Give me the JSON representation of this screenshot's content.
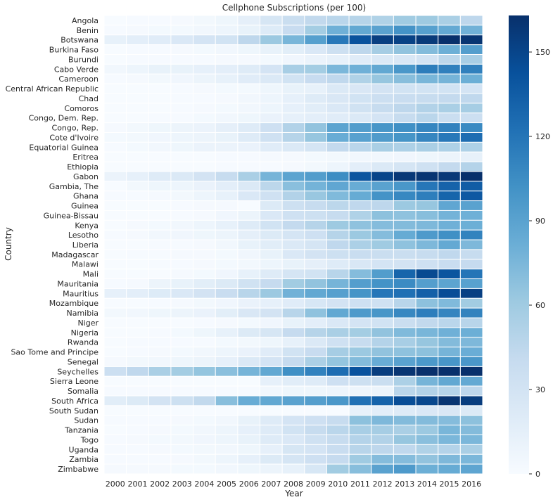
{
  "chart_data": {
    "type": "heatmap",
    "title": "Cellphone Subscriptions (per 100)",
    "xlabel": "Year",
    "ylabel": "Country",
    "colormap": "Blues",
    "low_color": "#f7fbff",
    "high_color": "#08306b",
    "value_range": [
      0,
      163
    ],
    "colorbar_ticks": [
      0,
      30,
      60,
      90,
      120,
      150
    ],
    "x": [
      "2000",
      "2001",
      "2002",
      "2003",
      "2004",
      "2005",
      "2006",
      "2007",
      "2008",
      "2009",
      "2010",
      "2011",
      "2012",
      "2013",
      "2014",
      "2015",
      "2016"
    ],
    "y": [
      "Angola",
      "Benin",
      "Botswana",
      "Burkina Faso",
      "Burundi",
      "Cabo Verde",
      "Cameroon",
      "Central African Republic",
      "Chad",
      "Comoros",
      "Congo, Dem. Rep.",
      "Congo, Rep.",
      "Cote d'Ivoire",
      "Equatorial Guinea",
      "Eritrea",
      "Ethiopia",
      "Gabon",
      "Gambia, The",
      "Ghana",
      "Guinea",
      "Guinea-Bissau",
      "Kenya",
      "Lesotho",
      "Liberia",
      "Madagascar",
      "Malawi",
      "Mali",
      "Mauritania",
      "Mauritius",
      "Mozambique",
      "Namibia",
      "Niger",
      "Nigeria",
      "Rwanda",
      "Sao Tome and Principe",
      "Senegal",
      "Seychelles",
      "Sierra Leone",
      "Somalia",
      "South Africa",
      "South Sudan",
      "Sudan",
      "Tanzania",
      "Togo",
      "Uganda",
      "Zambia",
      "Zimbabwe"
    ],
    "values": [
      [
        0,
        1,
        1,
        2,
        4,
        7,
        15,
        27,
        37,
        43,
        47,
        49,
        52,
        60,
        61,
        55,
        45
      ],
      [
        1,
        2,
        3,
        3,
        5,
        8,
        12,
        21,
        39,
        58,
        80,
        86,
        90,
        101,
        92,
        85,
        79
      ],
      [
        13,
        16,
        19,
        24,
        29,
        31,
        45,
        62,
        76,
        92,
        118,
        142,
        154,
        152,
        157,
        165,
        160
      ],
      [
        0,
        1,
        1,
        2,
        3,
        5,
        7,
        12,
        17,
        24,
        35,
        45,
        57,
        66,
        72,
        81,
        93
      ],
      [
        0,
        1,
        1,
        1,
        1,
        2,
        2,
        3,
        6,
        10,
        13,
        19,
        23,
        25,
        30,
        46,
        56
      ],
      [
        5,
        8,
        12,
        12,
        14,
        16,
        20,
        29,
        56,
        58,
        75,
        80,
        86,
        98,
        115,
        113,
        113
      ],
      [
        1,
        2,
        4,
        6,
        9,
        13,
        19,
        23,
        31,
        39,
        44,
        52,
        64,
        70,
        76,
        77,
        81
      ],
      [
        0,
        0,
        0,
        1,
        2,
        3,
        3,
        7,
        12,
        13,
        23,
        25,
        30,
        31,
        31,
        31,
        29
      ],
      [
        0,
        0,
        0,
        1,
        1,
        2,
        5,
        8,
        14,
        20,
        25,
        31,
        36,
        38,
        40,
        42,
        44
      ],
      [
        0,
        0,
        0,
        1,
        2,
        3,
        5,
        8,
        14,
        18,
        24,
        32,
        40,
        45,
        51,
        55,
        57
      ],
      [
        0,
        0,
        1,
        1,
        3,
        5,
        7,
        11,
        14,
        16,
        19,
        23,
        29,
        40,
        47,
        37,
        36
      ],
      [
        2,
        4,
        7,
        9,
        10,
        15,
        20,
        34,
        51,
        66,
        89,
        94,
        99,
        103,
        109,
        112,
        107
      ],
      [
        3,
        4,
        6,
        8,
        9,
        12,
        20,
        33,
        49,
        64,
        83,
        91,
        95,
        100,
        109,
        118,
        125
      ],
      [
        1,
        3,
        5,
        7,
        10,
        10,
        11,
        19,
        23,
        28,
        42,
        47,
        55,
        53,
        55,
        53,
        53
      ],
      [
        0,
        0,
        0,
        0,
        0,
        1,
        1,
        2,
        2,
        3,
        4,
        5,
        5,
        6,
        7,
        9,
        13
      ],
      [
        0,
        0,
        0,
        0,
        0,
        1,
        1,
        1,
        2,
        4,
        8,
        16,
        23,
        28,
        33,
        42,
        50
      ],
      [
        10,
        14,
        20,
        23,
        30,
        40,
        55,
        77,
        89,
        94,
        105,
        140,
        150,
        158,
        160,
        158,
        165
      ],
      [
        0,
        4,
        7,
        8,
        11,
        16,
        23,
        46,
        69,
        78,
        87,
        83,
        90,
        98,
        119,
        131,
        135
      ],
      [
        1,
        1,
        2,
        4,
        8,
        13,
        24,
        33,
        51,
        63,
        73,
        84,
        101,
        108,
        114,
        130,
        138
      ],
      [
        0,
        0,
        0,
        1,
        2,
        2,
        0,
        22,
        35,
        40,
        46,
        44,
        45,
        62,
        64,
        87,
        90
      ],
      [
        0,
        0,
        0,
        1,
        2,
        6,
        9,
        24,
        33,
        35,
        40,
        52,
        68,
        67,
        70,
        78,
        80
      ],
      [
        0,
        2,
        3,
        5,
        8,
        13,
        20,
        31,
        42,
        49,
        61,
        67,
        71,
        72,
        74,
        80,
        81
      ],
      [
        1,
        2,
        5,
        6,
        7,
        9,
        15,
        22,
        28,
        34,
        49,
        62,
        71,
        84,
        96,
        103,
        111
      ],
      [
        0,
        0,
        1,
        1,
        2,
        5,
        12,
        18,
        23,
        28,
        44,
        54,
        60,
        67,
        74,
        85,
        74
      ],
      [
        0,
        1,
        1,
        2,
        2,
        3,
        6,
        12,
        24,
        30,
        35,
        38,
        37,
        37,
        40,
        44,
        40
      ],
      [
        0,
        0,
        1,
        1,
        2,
        3,
        4,
        8,
        12,
        15,
        20,
        25,
        29,
        30,
        34,
        38,
        41
      ],
      [
        0,
        0,
        0,
        2,
        3,
        6,
        13,
        20,
        28,
        31,
        48,
        71,
        94,
        130,
        147,
        140,
        120
      ],
      [
        1,
        2,
        9,
        12,
        17,
        22,
        32,
        41,
        59,
        66,
        77,
        93,
        101,
        106,
        93,
        89,
        91
      ],
      [
        14,
        16,
        21,
        24,
        30,
        38,
        48,
        62,
        79,
        86,
        92,
        100,
        119,
        123,
        133,
        145,
        153
      ],
      [
        0,
        0,
        1,
        2,
        4,
        6,
        11,
        14,
        19,
        26,
        30,
        34,
        33,
        48,
        68,
        73,
        59
      ],
      [
        4,
        5,
        7,
        9,
        11,
        17,
        25,
        30,
        48,
        67,
        86,
        96,
        99,
        108,
        114,
        110,
        111
      ],
      [
        0,
        0,
        0,
        0,
        1,
        2,
        3,
        6,
        12,
        16,
        24,
        29,
        31,
        37,
        43,
        47,
        48
      ],
      [
        0,
        0,
        1,
        3,
        7,
        13,
        22,
        27,
        41,
        49,
        55,
        58,
        66,
        73,
        76,
        80,
        81
      ],
      [
        0,
        1,
        1,
        1,
        1,
        3,
        4,
        7,
        13,
        23,
        33,
        40,
        50,
        56,
        64,
        72,
        74
      ],
      [
        0,
        1,
        2,
        3,
        5,
        8,
        11,
        19,
        31,
        39,
        57,
        62,
        66,
        67,
        68,
        77,
        82
      ],
      [
        2,
        4,
        5,
        7,
        9,
        14,
        23,
        29,
        41,
        54,
        65,
        72,
        83,
        90,
        97,
        99,
        98
      ],
      [
        36,
        44,
        55,
        58,
        65,
        69,
        77,
        86,
        103,
        112,
        125,
        142,
        155,
        160,
        163,
        165,
        164
      ],
      [
        0,
        0,
        0,
        0,
        0,
        0,
        0,
        14,
        18,
        20,
        34,
        35,
        37,
        54,
        77,
        86,
        85
      ],
      [
        1,
        1,
        1,
        1,
        1,
        1,
        1,
        5,
        7,
        7,
        8,
        8,
        9,
        47,
        51,
        49,
        45
      ],
      [
        18,
        22,
        30,
        35,
        43,
        70,
        83,
        86,
        90,
        93,
        98,
        122,
        131,
        145,
        149,
        160,
        155
      ],
      [
        0,
        0,
        0,
        0,
        0,
        0,
        0,
        0,
        0,
        0,
        0,
        13,
        16,
        20,
        24,
        25,
        22
      ],
      [
        1,
        1,
        1,
        2,
        3,
        5,
        12,
        20,
        29,
        34,
        40,
        68,
        74,
        72,
        72,
        71,
        68
      ],
      [
        0,
        1,
        2,
        3,
        5,
        8,
        14,
        20,
        31,
        40,
        47,
        56,
        57,
        55,
        62,
        76,
        72
      ],
      [
        1,
        2,
        3,
        4,
        6,
        8,
        12,
        20,
        24,
        33,
        40,
        50,
        51,
        64,
        69,
        75,
        75
      ],
      [
        1,
        1,
        2,
        3,
        4,
        5,
        7,
        14,
        27,
        29,
        38,
        48,
        45,
        44,
        52,
        50,
        55
      ],
      [
        1,
        1,
        1,
        2,
        4,
        8,
        14,
        22,
        28,
        34,
        41,
        60,
        71,
        71,
        66,
        74,
        75
      ],
      [
        2,
        2,
        2,
        3,
        3,
        5,
        7,
        9,
        13,
        26,
        59,
        70,
        90,
        96,
        81,
        84,
        88
      ]
    ]
  }
}
